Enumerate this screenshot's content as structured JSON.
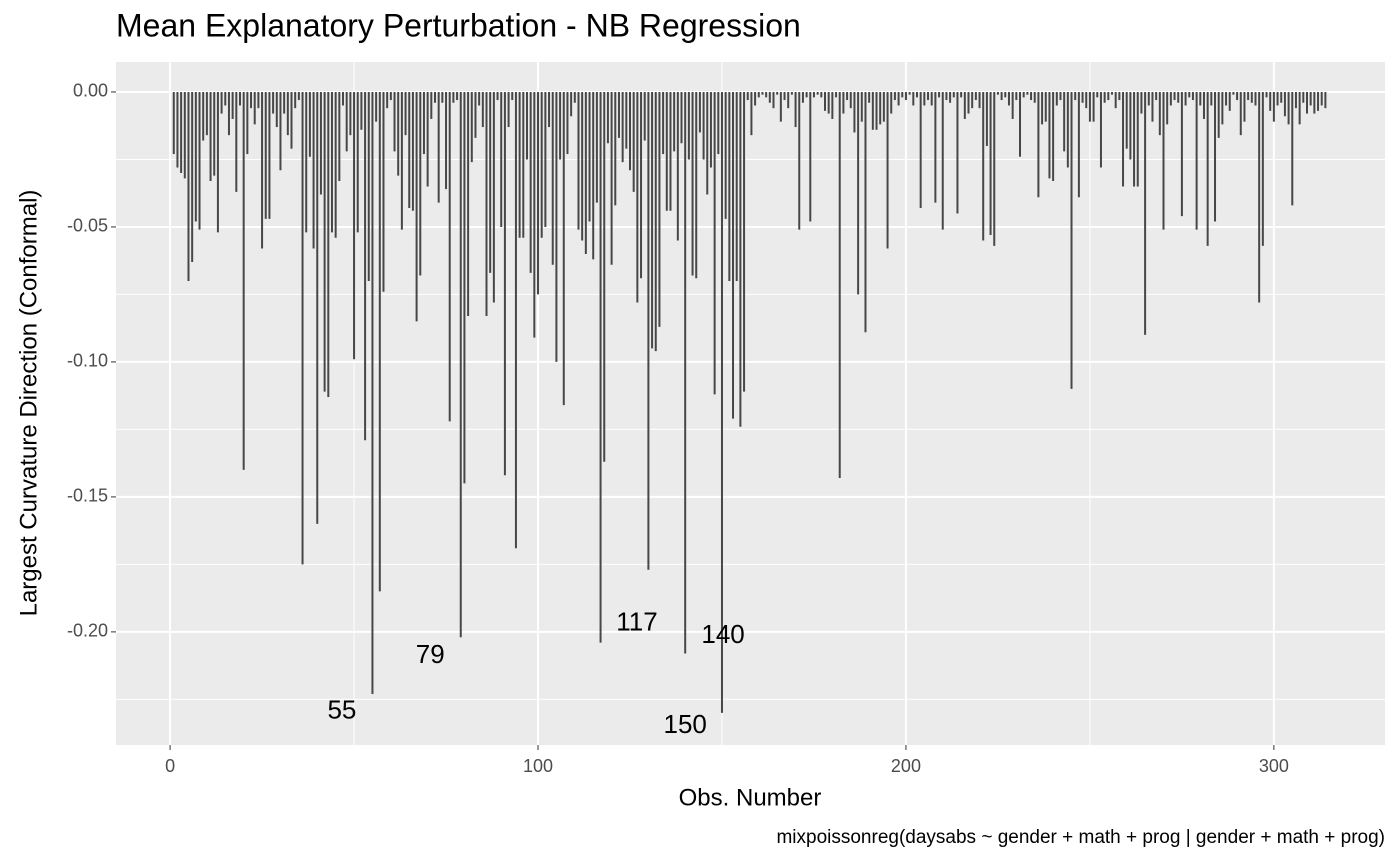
{
  "chart_data": {
    "type": "segment",
    "title": "Mean Explanatory Perturbation - NB Regression",
    "x_label": "Obs. Number",
    "y_label": "Largest Curvature Direction (Conformal)",
    "caption": "mixpoissonreg(daysabs ~ gender + math + prog | gender + math + prog)",
    "color": "#474747",
    "grid": true,
    "xlim": [
      -14.7,
      330.2
    ],
    "ylim": [
      -0.2419,
      0.0111
    ],
    "xticks": [
      0,
      100,
      200,
      300
    ],
    "yticks": [
      {
        "value": 0,
        "label": "0.00"
      },
      {
        "value": -0.05,
        "label": "-0.05"
      },
      {
        "value": -0.1,
        "label": "-0.10"
      },
      {
        "value": -0.15,
        "label": "-0.15"
      },
      {
        "value": -0.2,
        "label": "-0.20"
      }
    ],
    "xminor": [
      50,
      150,
      250
    ],
    "yminor": [
      -0.225,
      -0.175,
      -0.125,
      -0.075,
      -0.025
    ],
    "annotations": [
      {
        "text": "55",
        "x": 46.7,
        "y": -0.2296
      },
      {
        "text": "79",
        "x": 70.7,
        "y": -0.209
      },
      {
        "text": "117",
        "x": 126.9,
        "y": -0.197
      },
      {
        "text": "140",
        "x": 150.3,
        "y": -0.2015
      },
      {
        "text": "150",
        "x": 140.0,
        "y": -0.235
      }
    ],
    "x": [
      1,
      2,
      3,
      4,
      5,
      6,
      7,
      8,
      9,
      10,
      11,
      12,
      13,
      14,
      15,
      16,
      17,
      18,
      19,
      20,
      21,
      22,
      23,
      24,
      25,
      26,
      27,
      28,
      29,
      30,
      31,
      32,
      33,
      34,
      35,
      36,
      37,
      38,
      39,
      40,
      41,
      42,
      43,
      44,
      45,
      46,
      47,
      48,
      49,
      50,
      51,
      52,
      53,
      54,
      55,
      56,
      57,
      58,
      59,
      60,
      61,
      62,
      63,
      64,
      65,
      66,
      67,
      68,
      69,
      70,
      71,
      72,
      73,
      74,
      75,
      76,
      77,
      78,
      79,
      80,
      81,
      82,
      83,
      84,
      85,
      86,
      87,
      88,
      89,
      90,
      91,
      92,
      93,
      94,
      95,
      96,
      97,
      98,
      99,
      100,
      101,
      102,
      103,
      104,
      105,
      106,
      107,
      108,
      109,
      110,
      111,
      112,
      113,
      114,
      115,
      116,
      117,
      118,
      119,
      120,
      121,
      122,
      123,
      124,
      125,
      126,
      127,
      128,
      129,
      130,
      131,
      132,
      133,
      134,
      135,
      136,
      137,
      138,
      139,
      140,
      141,
      142,
      143,
      144,
      145,
      146,
      147,
      148,
      149,
      150,
      151,
      152,
      153,
      154,
      155,
      156,
      157,
      158,
      159,
      160,
      161,
      162,
      163,
      164,
      165,
      166,
      167,
      168,
      169,
      170,
      171,
      172,
      173,
      174,
      175,
      176,
      177,
      178,
      179,
      180,
      181,
      182,
      183,
      184,
      185,
      186,
      187,
      188,
      189,
      190,
      191,
      192,
      193,
      194,
      195,
      196,
      197,
      198,
      199,
      200,
      201,
      202,
      203,
      204,
      205,
      206,
      207,
      208,
      209,
      210,
      211,
      212,
      213,
      214,
      215,
      216,
      217,
      218,
      219,
      220,
      221,
      222,
      223,
      224,
      225,
      226,
      227,
      228,
      229,
      230,
      231,
      232,
      233,
      234,
      235,
      236,
      237,
      238,
      239,
      240,
      241,
      242,
      243,
      244,
      245,
      246,
      247,
      248,
      249,
      250,
      251,
      252,
      253,
      254,
      255,
      256,
      257,
      258,
      259,
      260,
      261,
      262,
      263,
      264,
      265,
      266,
      267,
      268,
      269,
      270,
      271,
      272,
      273,
      274,
      275,
      276,
      277,
      278,
      279,
      280,
      281,
      282,
      283,
      284,
      285,
      286,
      287,
      288,
      289,
      290,
      291,
      292,
      293,
      294,
      295,
      296,
      297,
      298,
      299,
      300,
      301,
      302,
      303,
      304,
      305,
      306,
      307,
      308,
      309,
      310,
      311,
      312,
      313,
      314
    ],
    "values": [
      -0.023,
      -0.028,
      -0.03,
      -0.032,
      -0.07,
      -0.063,
      -0.048,
      -0.051,
      -0.018,
      -0.016,
      -0.033,
      -0.031,
      -0.052,
      -0.008,
      -0.005,
      -0.016,
      -0.01,
      -0.037,
      -0.005,
      -0.14,
      -0.023,
      -0.006,
      -0.012,
      -0.006,
      -0.058,
      -0.047,
      -0.047,
      -0.008,
      -0.013,
      -0.029,
      -0.008,
      -0.016,
      -0.021,
      -0.006,
      -0.003,
      -0.175,
      -0.052,
      -0.024,
      -0.058,
      -0.16,
      -0.038,
      -0.111,
      -0.113,
      -0.052,
      -0.054,
      -0.033,
      -0.005,
      -0.022,
      -0.016,
      -0.099,
      -0.052,
      -0.014,
      -0.129,
      -0.07,
      -0.223,
      -0.011,
      -0.185,
      -0.074,
      -0.006,
      -0.003,
      -0.022,
      -0.031,
      -0.051,
      -0.016,
      -0.043,
      -0.044,
      -0.085,
      -0.068,
      -0.023,
      -0.035,
      -0.01,
      -0.004,
      -0.041,
      -0.004,
      -0.036,
      -0.122,
      -0.004,
      -0.003,
      -0.202,
      -0.145,
      -0.083,
      -0.026,
      -0.017,
      -0.005,
      -0.013,
      -0.083,
      -0.067,
      -0.078,
      -0.003,
      -0.05,
      -0.142,
      -0.013,
      -0.003,
      -0.169,
      -0.054,
      -0.054,
      -0.025,
      -0.067,
      -0.091,
      -0.075,
      -0.054,
      -0.05,
      -0.013,
      -0.064,
      -0.1,
      -0.025,
      -0.116,
      -0.023,
      -0.009,
      -0.004,
      -0.051,
      -0.055,
      -0.06,
      -0.048,
      -0.062,
      -0.041,
      -0.204,
      -0.137,
      -0.019,
      -0.064,
      -0.042,
      -0.017,
      -0.026,
      -0.021,
      -0.029,
      -0.037,
      -0.078,
      -0.069,
      -0.018,
      -0.177,
      -0.095,
      -0.096,
      -0.087,
      -0.023,
      -0.044,
      -0.044,
      -0.022,
      -0.055,
      -0.019,
      -0.208,
      -0.025,
      -0.068,
      -0.069,
      -0.015,
      -0.025,
      -0.038,
      -0.028,
      -0.112,
      -0.023,
      -0.23,
      -0.047,
      -0.07,
      -0.121,
      -0.07,
      -0.124,
      -0.111,
      -0.003,
      -0.016,
      -0.005,
      -0.002,
      -0.001,
      -0.002,
      -0.004,
      -0.006,
      -0.001,
      -0.011,
      -0.003,
      -0.006,
      -0.001,
      -0.013,
      -0.051,
      -0.004,
      -0.002,
      -0.048,
      -0.002,
      -0.001,
      -0.002,
      -0.007,
      -0.008,
      -0.01,
      -0.002,
      -0.143,
      -0.008,
      -0.003,
      -0.006,
      -0.015,
      -0.075,
      -0.011,
      -0.089,
      -0.004,
      -0.014,
      -0.014,
      -0.012,
      -0.011,
      -0.058,
      -0.008,
      -0.003,
      -0.005,
      -0.002,
      -0.003,
      -0.001,
      -0.005,
      -0.002,
      -0.043,
      -0.005,
      -0.003,
      -0.005,
      -0.041,
      -0.002,
      -0.051,
      -0.003,
      -0.004,
      -0.002,
      -0.045,
      -0.002,
      -0.01,
      -0.008,
      -0.006,
      -0.003,
      -0.006,
      -0.055,
      -0.02,
      -0.053,
      -0.057,
      -0.001,
      -0.003,
      -0.002,
      -0.005,
      -0.01,
      -0.003,
      -0.024,
      -0.002,
      -0.001,
      -0.003,
      -0.004,
      -0.039,
      -0.012,
      -0.011,
      -0.032,
      -0.033,
      -0.005,
      -0.003,
      -0.022,
      -0.028,
      -0.11,
      -0.003,
      -0.039,
      -0.004,
      -0.006,
      -0.011,
      -0.011,
      -0.002,
      -0.028,
      -0.004,
      -0.003,
      -0.001,
      -0.006,
      -0.003,
      -0.035,
      -0.021,
      -0.025,
      -0.035,
      -0.035,
      -0.008,
      -0.09,
      -0.005,
      -0.011,
      -0.003,
      -0.016,
      -0.051,
      -0.012,
      -0.005,
      -0.003,
      -0.004,
      -0.046,
      -0.005,
      -0.002,
      -0.003,
      -0.051,
      -0.005,
      -0.01,
      -0.057,
      -0.005,
      -0.048,
      -0.017,
      -0.012,
      -0.005,
      -0.007,
      -0.001,
      -0.003,
      -0.016,
      -0.011,
      -0.003,
      -0.004,
      -0.005,
      -0.078,
      -0.057,
      -0.002,
      -0.007,
      -0.011,
      -0.005,
      -0.004,
      -0.009,
      -0.012,
      -0.042,
      -0.006,
      -0.012,
      -0.004,
      -0.008,
      -0.005,
      -0.008,
      -0.007,
      -0.005,
      -0.006
    ]
  }
}
